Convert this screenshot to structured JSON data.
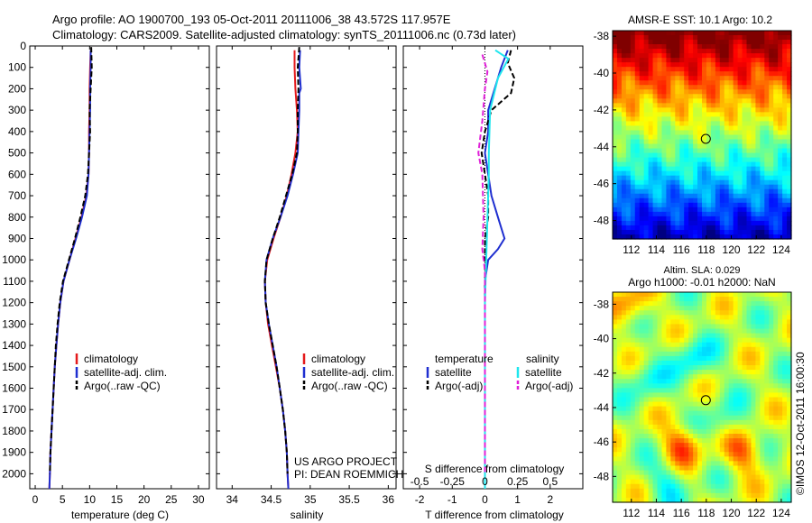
{
  "header": {
    "title_line1": "Argo profile: AO 1900700_193 05-Oct-2011 20111006_38 43.572S 117.957E",
    "title_line2": "Climatology: CARS2009. Satellite-adjusted climatology: synTS_20111006.nc (0.73d later)"
  },
  "colors": {
    "climatology": "#e41a1c",
    "satellite": "#1f2fd0",
    "argo": "#000000",
    "salinity_satellite": "#1ee6ee",
    "salinity_argo": "#e020d8"
  },
  "chart_data": [
    {
      "id": "temperature",
      "type": "line",
      "xlabel": "temperature (deg C)",
      "xlim": [
        -1,
        32
      ],
      "xticks": [
        0,
        5,
        10,
        15,
        20,
        25,
        30
      ],
      "ylim": [
        0,
        2070
      ],
      "yticks": [
        0,
        100,
        200,
        300,
        400,
        500,
        600,
        700,
        800,
        900,
        1000,
        1100,
        1200,
        1300,
        1400,
        1500,
        1600,
        1700,
        1800,
        1900,
        2000
      ],
      "legend": {
        "position": "lower-right",
        "entries": [
          "climatology",
          "satellite-adj. clim.",
          "Argo(..raw -QC)"
        ]
      },
      "series": [
        {
          "name": "climatology",
          "color": "#e41a1c",
          "dash": "",
          "points": [
            [
              10.2,
              20
            ],
            [
              10.1,
              100
            ],
            [
              10.0,
              200
            ],
            [
              10.0,
              300
            ],
            [
              9.9,
              400
            ],
            [
              9.9,
              500
            ],
            [
              9.8,
              600
            ],
            [
              9.4,
              700
            ],
            [
              8.5,
              800
            ],
            [
              7.4,
              900
            ],
            [
              6.3,
              1000
            ],
            [
              5.2,
              1100
            ],
            [
              4.6,
              1200
            ],
            [
              4.2,
              1300
            ],
            [
              3.9,
              1400
            ],
            [
              3.6,
              1500
            ],
            [
              3.4,
              1600
            ],
            [
              3.2,
              1700
            ],
            [
              3.0,
              1800
            ],
            [
              2.8,
              1900
            ],
            [
              2.7,
              2000
            ],
            [
              2.6,
              2070
            ]
          ]
        },
        {
          "name": "satellite-adj. clim.",
          "color": "#1f2fd0",
          "dash": "",
          "points": [
            [
              10.2,
              20
            ],
            [
              10.2,
              100
            ],
            [
              10.1,
              200
            ],
            [
              10.1,
              300
            ],
            [
              10.0,
              400
            ],
            [
              9.9,
              500
            ],
            [
              9.8,
              600
            ],
            [
              9.5,
              700
            ],
            [
              8.6,
              800
            ],
            [
              7.5,
              900
            ],
            [
              6.3,
              1000
            ],
            [
              5.2,
              1100
            ],
            [
              4.6,
              1200
            ],
            [
              4.2,
              1300
            ],
            [
              3.9,
              1400
            ],
            [
              3.6,
              1500
            ],
            [
              3.4,
              1600
            ],
            [
              3.2,
              1700
            ],
            [
              3.0,
              1800
            ],
            [
              2.8,
              1900
            ],
            [
              2.7,
              2000
            ],
            [
              2.6,
              2070
            ]
          ]
        },
        {
          "name": "Argo(..raw -QC)",
          "color": "#000000",
          "dash": "6,3",
          "points": [
            [
              10.3,
              5
            ],
            [
              10.4,
              100
            ],
            [
              10.2,
              200
            ],
            [
              10.0,
              300
            ],
            [
              10.1,
              400
            ],
            [
              9.9,
              500
            ],
            [
              9.7,
              600
            ],
            [
              9.2,
              700
            ],
            [
              8.3,
              800
            ],
            [
              7.3,
              900
            ],
            [
              6.2,
              1000
            ],
            [
              5.1,
              1100
            ],
            [
              4.5,
              1200
            ],
            [
              4.1,
              1300
            ],
            [
              3.8,
              1400
            ],
            [
              3.6,
              1500
            ],
            [
              3.4,
              1600
            ],
            [
              3.2,
              1700
            ],
            [
              3.0,
              1800
            ],
            [
              2.8,
              1900
            ],
            [
              2.7,
              2000
            ]
          ]
        }
      ]
    },
    {
      "id": "salinity",
      "type": "line",
      "xlabel": "salinity",
      "xlim": [
        33.8,
        36.1
      ],
      "xticks": [
        34,
        34.5,
        35,
        35.5,
        36
      ],
      "ylim": [
        0,
        2070
      ],
      "legend": {
        "position": "lower-right",
        "entries": [
          "climatology",
          "satellite-adj. clim.",
          "Argo(..raw -QC)"
        ]
      },
      "annotations": [
        "US ARGO PROJECT",
        "PI: DEAN ROEMMICH"
      ],
      "series": [
        {
          "name": "climatology",
          "color": "#e41a1c",
          "dash": "",
          "points": [
            [
              34.8,
              20
            ],
            [
              34.8,
              100
            ],
            [
              34.81,
              200
            ],
            [
              34.83,
              300
            ],
            [
              34.84,
              400
            ],
            [
              34.81,
              500
            ],
            [
              34.76,
              600
            ],
            [
              34.7,
              700
            ],
            [
              34.62,
              800
            ],
            [
              34.53,
              900
            ],
            [
              34.45,
              1000
            ],
            [
              34.42,
              1100
            ],
            [
              34.43,
              1200
            ],
            [
              34.46,
              1300
            ],
            [
              34.51,
              1400
            ],
            [
              34.56,
              1500
            ],
            [
              34.61,
              1600
            ],
            [
              34.65,
              1700
            ],
            [
              34.68,
              1800
            ],
            [
              34.7,
              1900
            ],
            [
              34.71,
              2000
            ],
            [
              34.72,
              2070
            ]
          ]
        },
        {
          "name": "satellite-adj. clim.",
          "color": "#1f2fd0",
          "dash": "",
          "points": [
            [
              34.87,
              20
            ],
            [
              34.86,
              100
            ],
            [
              34.88,
              200
            ],
            [
              34.86,
              220
            ],
            [
              34.86,
              300
            ],
            [
              34.85,
              400
            ],
            [
              34.84,
              500
            ],
            [
              34.78,
              600
            ],
            [
              34.71,
              700
            ],
            [
              34.62,
              800
            ],
            [
              34.52,
              900
            ],
            [
              34.44,
              1000
            ],
            [
              34.42,
              1100
            ],
            [
              34.43,
              1200
            ],
            [
              34.47,
              1300
            ],
            [
              34.52,
              1400
            ],
            [
              34.57,
              1500
            ],
            [
              34.61,
              1600
            ],
            [
              34.65,
              1700
            ],
            [
              34.68,
              1800
            ],
            [
              34.7,
              1900
            ],
            [
              34.71,
              2000
            ],
            [
              34.72,
              2070
            ]
          ]
        },
        {
          "name": "Argo(..raw -QC)",
          "color": "#000000",
          "dash": "6,3",
          "points": [
            [
              34.86,
              5
            ],
            [
              34.84,
              100
            ],
            [
              34.85,
              200
            ],
            [
              34.84,
              300
            ],
            [
              34.84,
              400
            ],
            [
              34.83,
              500
            ],
            [
              34.77,
              600
            ],
            [
              34.69,
              700
            ],
            [
              34.61,
              800
            ],
            [
              34.52,
              900
            ],
            [
              34.44,
              1000
            ],
            [
              34.42,
              1100
            ],
            [
              34.43,
              1200
            ],
            [
              34.47,
              1300
            ],
            [
              34.52,
              1400
            ],
            [
              34.57,
              1500
            ],
            [
              34.61,
              1600
            ],
            [
              34.65,
              1700
            ],
            [
              34.68,
              1800
            ],
            [
              34.7,
              1900
            ],
            [
              34.71,
              2000
            ]
          ]
        }
      ]
    },
    {
      "id": "differences",
      "type": "line",
      "xlabel": "T difference from climatology",
      "xlabel_top": "S difference from climatology",
      "xlim": [
        -2.5,
        3
      ],
      "xticks": [
        -2,
        -1,
        0,
        1,
        2
      ],
      "xticks_top": [
        -0.5,
        -0.25,
        0,
        0.25,
        0.5
      ],
      "ylim": [
        0,
        2070
      ],
      "legend": {
        "position": "lower-center",
        "temperature_title": "temperature",
        "salinity_title": "salinity",
        "entries": [
          "satellite",
          "Argo(-adj)",
          "satellite",
          "Argo(-adj)"
        ]
      },
      "series": [
        {
          "name": "satellite",
          "group": "temperature",
          "color": "#1f2fd0",
          "dash": "",
          "points": [
            [
              0.7,
              20
            ],
            [
              0.5,
              100
            ],
            [
              0.3,
              200
            ],
            [
              0.1,
              300
            ],
            [
              0.1,
              400
            ],
            [
              0.0,
              500
            ],
            [
              0.1,
              600
            ],
            [
              0.2,
              700
            ],
            [
              0.4,
              800
            ],
            [
              0.6,
              900
            ],
            [
              0.4,
              950
            ],
            [
              0.1,
              1000
            ],
            [
              0.0,
              1100
            ],
            [
              0.0,
              1200
            ],
            [
              0.0,
              1300
            ],
            [
              0.0,
              2070
            ]
          ]
        },
        {
          "name": "Argo(-adj)",
          "group": "temperature",
          "color": "#000000",
          "dash": "6,3",
          "points": [
            [
              0.8,
              20
            ],
            [
              0.7,
              80
            ],
            [
              0.9,
              150
            ],
            [
              0.8,
              220
            ],
            [
              0.2,
              300
            ],
            [
              0.0,
              400
            ],
            [
              -0.1,
              500
            ],
            [
              0.0,
              600
            ],
            [
              0.1,
              700
            ],
            [
              0.1,
              800
            ],
            [
              0.0,
              900
            ],
            [
              0.0,
              1000
            ],
            [
              0.0,
              2000
            ]
          ]
        },
        {
          "name": "satellite",
          "group": "salinity",
          "color": "#1ee6ee",
          "dash": "",
          "points": [
            [
              0.08,
              20
            ],
            [
              0.18,
              60
            ],
            [
              0.1,
              150
            ],
            [
              0.04,
              300
            ],
            [
              0.03,
              500
            ],
            [
              0.03,
              600
            ],
            [
              0.02,
              800
            ],
            [
              0.01,
              1000
            ],
            [
              0.0,
              1200
            ],
            [
              0.0,
              2070
            ]
          ]
        },
        {
          "name": "Argo(-adj)",
          "group": "salinity",
          "color": "#e020d8",
          "dash": "6,3",
          "points": [
            [
              -0.02,
              40
            ],
            [
              0.02,
              120
            ],
            [
              0.0,
              200
            ],
            [
              -0.02,
              350
            ],
            [
              -0.05,
              500
            ],
            [
              -0.02,
              600
            ],
            [
              -0.01,
              800
            ],
            [
              -0.02,
              950
            ],
            [
              0.0,
              1050
            ],
            [
              0.0,
              2000
            ]
          ]
        }
      ]
    },
    {
      "id": "sst-map",
      "type": "heatmap",
      "title": "AMSR-E SST: 10.1 Argo: 10.2",
      "xlim": [
        110.5,
        124.8
      ],
      "ylim": [
        -49,
        -37.7
      ],
      "xticks": [
        112,
        114,
        116,
        118,
        120,
        122,
        124
      ],
      "yticks": [
        -38,
        -40,
        -42,
        -44,
        -46,
        -48
      ],
      "marker": {
        "lon": 117.957,
        "lat": -43.572
      }
    },
    {
      "id": "sla-map",
      "type": "heatmap",
      "title_line1": "Altim. SLA: 0.029",
      "title_line2": "Argo h1000: -0.01 h2000: NaN",
      "xlim": [
        110.5,
        124.8
      ],
      "ylim": [
        -49.5,
        -37.3
      ],
      "xticks": [
        112,
        114,
        116,
        118,
        120,
        122,
        124
      ],
      "yticks": [
        -38,
        -40,
        -42,
        -44,
        -46,
        -48
      ],
      "marker": {
        "lon": 117.957,
        "lat": -43.572
      }
    }
  ],
  "footer": {
    "credit": "©IMOS 12-Oct-2011 16:00:30"
  }
}
